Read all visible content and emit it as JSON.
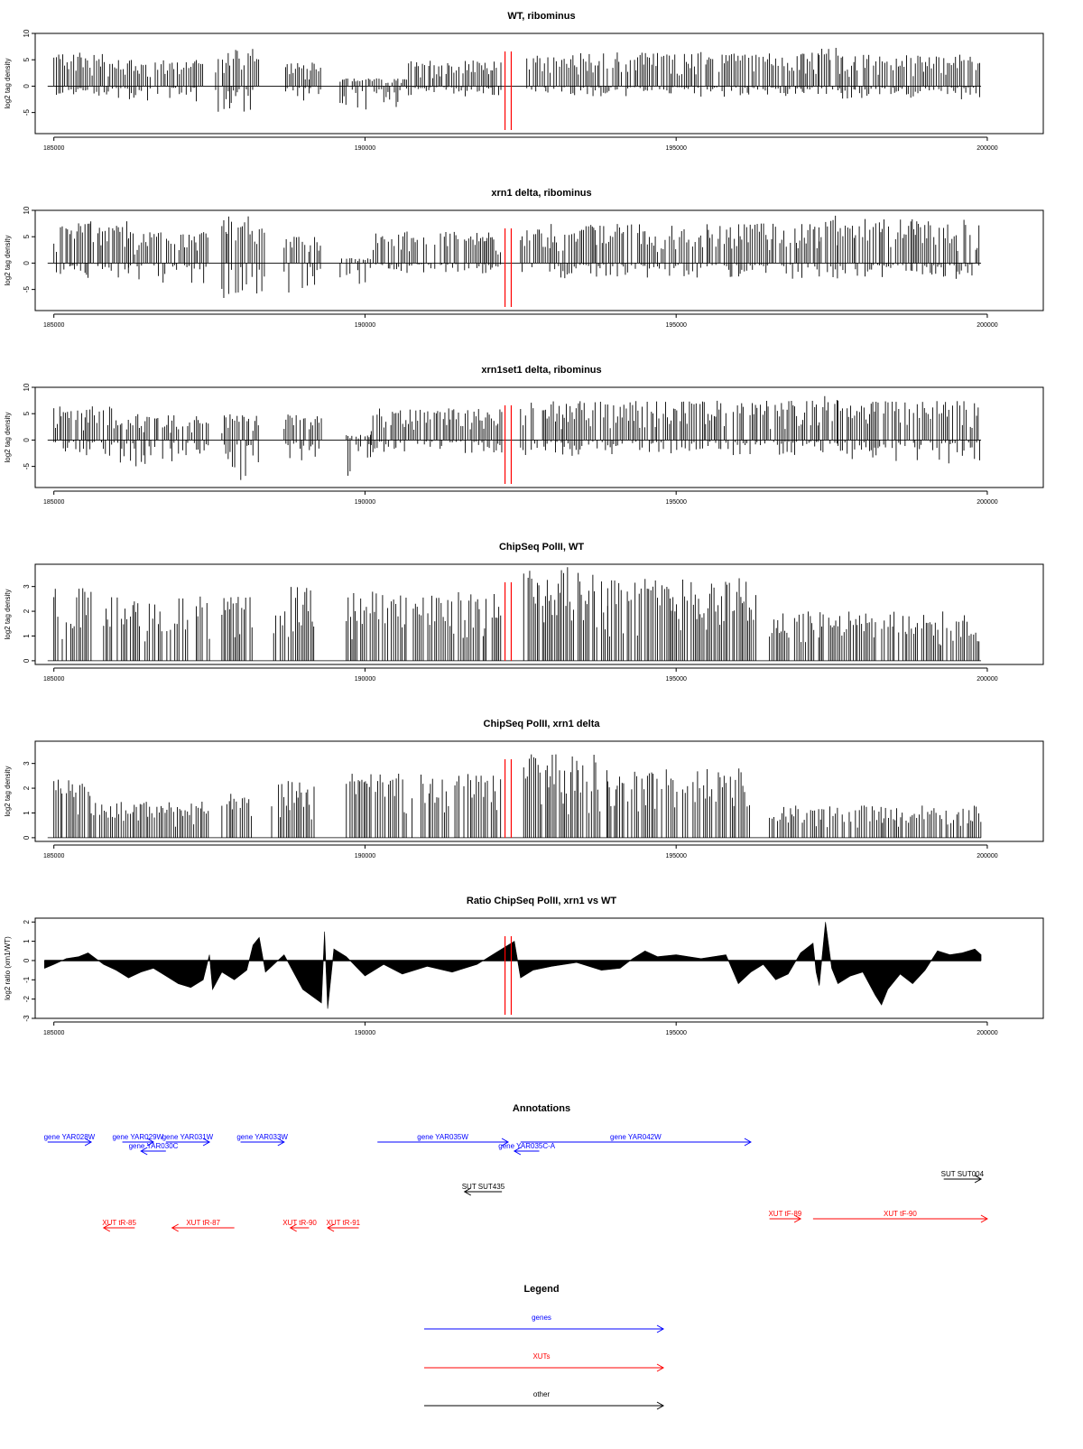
{
  "chart_data": [
    {
      "type": "bar",
      "title": "WT, ribominus",
      "xlabel": "",
      "ylabel": "log2 tag density",
      "xlim": [
        184700,
        200900
      ],
      "ylim": [
        -9,
        10
      ],
      "yticks": [
        "-5",
        "0",
        "5",
        "10"
      ],
      "yticks_values": [
        -5,
        0,
        5,
        10
      ],
      "xticks": [
        "185000",
        "190000",
        "195000",
        "200000"
      ],
      "xticks_values": [
        185000,
        190000,
        195000,
        200000
      ],
      "red_lines_x": [
        192250,
        192350
      ],
      "profile": [
        {
          "x": [
            185000,
            185900
          ],
          "pos_max": 6.5,
          "neg_min": -2
        },
        {
          "x": [
            185900,
            187400
          ],
          "pos_max": 5,
          "neg_min": -3
        },
        {
          "x": [
            187600,
            188300
          ],
          "pos_max": 7.5,
          "neg_min": -5.5
        },
        {
          "x": [
            188700,
            189300
          ],
          "pos_max": 4.5,
          "neg_min": -3
        },
        {
          "x": [
            189600,
            190700
          ],
          "pos_max": 1.5,
          "neg_min": -4.5
        },
        {
          "x": [
            190700,
            192200
          ],
          "pos_max": 5,
          "neg_min": -2
        },
        {
          "x": [
            192600,
            197300
          ],
          "pos_max": 6.5,
          "neg_min": -2
        },
        {
          "x": [
            197300,
            197600
          ],
          "pos_max": 8.5,
          "neg_min": -2
        },
        {
          "x": [
            197600,
            199900
          ],
          "pos_max": 6,
          "neg_min": -2.5
        }
      ]
    },
    {
      "type": "bar",
      "title": "xrn1 delta, ribominus",
      "xlabel": "",
      "ylabel": "log2 tag density",
      "xlim": [
        184700,
        200900
      ],
      "ylim": [
        -9,
        10
      ],
      "yticks": [
        "-5",
        "0",
        "5",
        "10"
      ],
      "yticks_values": [
        -5,
        0,
        5,
        10
      ],
      "xticks": [
        "185000",
        "190000",
        "195000",
        "200000"
      ],
      "xticks_values": [
        185000,
        190000,
        195000,
        200000
      ],
      "red_lines_x": [
        192250,
        192350
      ],
      "profile": [
        {
          "x": [
            185000,
            186200
          ],
          "pos_max": 8,
          "neg_min": -3
        },
        {
          "x": [
            186200,
            187500
          ],
          "pos_max": 6,
          "neg_min": -4
        },
        {
          "x": [
            187700,
            188400
          ],
          "pos_max": 9,
          "neg_min": -7
        },
        {
          "x": [
            188700,
            189300
          ],
          "pos_max": 5,
          "neg_min": -6
        },
        {
          "x": [
            189600,
            190100
          ],
          "pos_max": 1,
          "neg_min": -5.5
        },
        {
          "x": [
            190100,
            192200
          ],
          "pos_max": 6,
          "neg_min": -2
        },
        {
          "x": [
            192500,
            197300
          ],
          "pos_max": 7.5,
          "neg_min": -3
        },
        {
          "x": [
            197300,
            197600
          ],
          "pos_max": 9,
          "neg_min": -3
        },
        {
          "x": [
            197600,
            199900
          ],
          "pos_max": 8.5,
          "neg_min": -3
        }
      ]
    },
    {
      "type": "bar",
      "title": "xrn1set1 delta, ribominus",
      "xlabel": "",
      "ylabel": "log2 tag density",
      "xlim": [
        184700,
        200900
      ],
      "ylim": [
        -9,
        10
      ],
      "yticks": [
        "-5",
        "0",
        "5",
        "10"
      ],
      "yticks_values": [
        -5,
        0,
        5,
        10
      ],
      "xticks": [
        "185000",
        "190000",
        "195000",
        "200000"
      ],
      "xticks_values": [
        185000,
        190000,
        195000,
        200000
      ],
      "red_lines_x": [
        192250,
        192350
      ],
      "profile": [
        {
          "x": [
            185000,
            186000
          ],
          "pos_max": 6.5,
          "neg_min": -3
        },
        {
          "x": [
            186000,
            187500
          ],
          "pos_max": 5,
          "neg_min": -5
        },
        {
          "x": [
            187700,
            188300
          ],
          "pos_max": 5,
          "neg_min": -8.5
        },
        {
          "x": [
            188700,
            189300
          ],
          "pos_max": 5,
          "neg_min": -4
        },
        {
          "x": [
            189700,
            190100
          ],
          "pos_max": 1,
          "neg_min": -7
        },
        {
          "x": [
            190100,
            192200
          ],
          "pos_max": 6,
          "neg_min": -2.5
        },
        {
          "x": [
            192500,
            197300
          ],
          "pos_max": 7.5,
          "neg_min": -3
        },
        {
          "x": [
            197300,
            197600
          ],
          "pos_max": 8.5,
          "neg_min": -3
        },
        {
          "x": [
            197600,
            199900
          ],
          "pos_max": 7.5,
          "neg_min": -4.5
        }
      ]
    },
    {
      "type": "bar",
      "title": "ChipSeq PolII, WT",
      "xlabel": "",
      "ylabel": "log2 tag density",
      "xlim": [
        184700,
        200900
      ],
      "ylim": [
        -0.15,
        3.9
      ],
      "yticks": [
        "0",
        "1",
        "2",
        "3"
      ],
      "yticks_values": [
        0,
        1,
        2,
        3
      ],
      "xticks": [
        "185000",
        "190000",
        "195000",
        "200000"
      ],
      "xticks_values": [
        185000,
        190000,
        195000,
        200000
      ],
      "red_lines_x": [
        192250,
        192350
      ],
      "profile": [
        {
          "x": [
            185000,
            185600
          ],
          "pos_max": 3,
          "neg_min": 0
        },
        {
          "x": [
            185800,
            187500
          ],
          "pos_max": 2.6,
          "neg_min": 0
        },
        {
          "x": [
            187700,
            188200
          ],
          "pos_max": 2.6,
          "neg_min": 0
        },
        {
          "x": [
            188500,
            189200
          ],
          "pos_max": 3,
          "neg_min": 0
        },
        {
          "x": [
            189700,
            192200
          ],
          "pos_max": 2.8,
          "neg_min": 0
        },
        {
          "x": [
            192550,
            193900
          ],
          "pos_max": 3.8,
          "neg_min": 0
        },
        {
          "x": [
            193900,
            196300
          ],
          "pos_max": 3.4,
          "neg_min": 0
        },
        {
          "x": [
            196500,
            199900
          ],
          "pos_max": 2,
          "neg_min": 0
        }
      ]
    },
    {
      "type": "bar",
      "title": "ChipSeq PolII, xrn1 delta",
      "xlabel": "",
      "ylabel": "log2 tag density",
      "xlim": [
        184700,
        200900
      ],
      "ylim": [
        -0.15,
        3.9
      ],
      "yticks": [
        "0",
        "1",
        "2",
        "3"
      ],
      "yticks_values": [
        0,
        1,
        2,
        3
      ],
      "xticks": [
        "185000",
        "190000",
        "195000",
        "200000"
      ],
      "xticks_values": [
        185000,
        190000,
        195000,
        200000
      ],
      "red_lines_x": [
        192250,
        192350
      ],
      "profile": [
        {
          "x": [
            185000,
            185600
          ],
          "pos_max": 2.4,
          "neg_min": 0
        },
        {
          "x": [
            185600,
            187500
          ],
          "pos_max": 1.5,
          "neg_min": 0
        },
        {
          "x": [
            187700,
            188200
          ],
          "pos_max": 1.8,
          "neg_min": 0
        },
        {
          "x": [
            188500,
            189200
          ],
          "pos_max": 2.3,
          "neg_min": 0
        },
        {
          "x": [
            189700,
            192200
          ],
          "pos_max": 2.6,
          "neg_min": 0
        },
        {
          "x": [
            192550,
            193900
          ],
          "pos_max": 3.4,
          "neg_min": 0
        },
        {
          "x": [
            193900,
            196200
          ],
          "pos_max": 2.8,
          "neg_min": 0
        },
        {
          "x": [
            196500,
            199900
          ],
          "pos_max": 1.3,
          "neg_min": 0
        }
      ]
    },
    {
      "type": "area",
      "title": "Ratio ChipSeq PolII, xrn1 vs WT",
      "xlabel": "",
      "ylabel": "log2 ratio (xrn1/WT)",
      "xlim": [
        184700,
        200900
      ],
      "ylim": [
        -3,
        2.2
      ],
      "yticks": [
        "-3",
        "-2",
        "-1",
        "0",
        "1",
        "2"
      ],
      "yticks_values": [
        -3,
        -2,
        -1,
        0,
        1,
        2
      ],
      "xticks": [
        "185000",
        "190000",
        "195000",
        "200000"
      ],
      "xticks_values": [
        185000,
        190000,
        195000,
        200000
      ],
      "red_lines_x": [
        192250,
        192350
      ],
      "x": [
        184850,
        185000,
        185200,
        185400,
        185550,
        185800,
        186000,
        186200,
        186400,
        186600,
        186800,
        187000,
        187200,
        187400,
        187500,
        187550,
        187700,
        187900,
        188100,
        188200,
        188300,
        188400,
        188500,
        188700,
        189000,
        189300,
        189350,
        189400,
        189500,
        189700,
        190000,
        190300,
        190600,
        191000,
        191400,
        191800,
        192100,
        192300,
        192400,
        192500,
        192700,
        193000,
        193400,
        193800,
        194100,
        194300,
        194500,
        194700,
        195000,
        195400,
        195800,
        196000,
        196200,
        196400,
        196600,
        196800,
        197000,
        197200,
        197250,
        197300,
        197400,
        197500,
        197600,
        197800,
        198000,
        198200,
        198300,
        198400,
        198600,
        198800,
        199000,
        199200,
        199400,
        199600,
        199800,
        199900
      ],
      "y": [
        -0.4,
        -0.2,
        0.1,
        0.2,
        0.4,
        -0.2,
        -0.5,
        -0.9,
        -0.6,
        -0.4,
        -0.8,
        -1.2,
        -1.4,
        -1.0,
        0.3,
        -1.5,
        -0.6,
        -1.0,
        -0.5,
        0.8,
        1.2,
        -0.6,
        -0.3,
        0.3,
        -1.5,
        -2.2,
        1.5,
        -2.5,
        0.6,
        0.2,
        -0.8,
        -0.2,
        -0.7,
        -0.3,
        -0.6,
        -0.2,
        0.4,
        0.8,
        1.0,
        -0.9,
        -0.5,
        -0.3,
        -0.1,
        -0.5,
        -0.4,
        0.1,
        0.5,
        0.2,
        0.3,
        0.1,
        0.3,
        -1.2,
        -0.6,
        -0.2,
        -1.0,
        -0.7,
        0.4,
        0.9,
        -0.6,
        -1.3,
        2.0,
        -0.4,
        -1.2,
        -0.8,
        -0.6,
        -1.8,
        -2.3,
        -1.5,
        -0.7,
        -1.2,
        -0.5,
        0.5,
        0.3,
        0.4,
        0.6,
        0.3
      ]
    }
  ],
  "annotations": {
    "title": "Annotations",
    "rows": [
      {
        "y_row": 1,
        "color": "#0000ff",
        "items": [
          {
            "label": "gene YAR028W",
            "start": 184900,
            "end": 185600,
            "dir": "right"
          },
          {
            "label": "gene YAR029W",
            "start": 186100,
            "end": 186600,
            "dir": "right"
          },
          {
            "label": "gene YAR031W",
            "start": 186800,
            "end": 187500,
            "dir": "right"
          },
          {
            "label": "gene YAR033W",
            "start": 188000,
            "end": 188700,
            "dir": "right"
          },
          {
            "label": "gene YAR035W",
            "start": 190200,
            "end": 192300,
            "dir": "right"
          },
          {
            "label": "gene YAR042W",
            "start": 192500,
            "end": 196200,
            "dir": "right"
          }
        ]
      },
      {
        "y_row": 2,
        "color": "#0000ff",
        "items": [
          {
            "label": "gene YAR030C",
            "start": 186400,
            "end": 186800,
            "dir": "left"
          },
          {
            "label": "gene YAR035C-A",
            "start": 192400,
            "end": 192800,
            "dir": "left"
          }
        ]
      },
      {
        "y_row": 3,
        "color": "#000000",
        "items": [
          {
            "label": "SUT SUT004",
            "start": 199300,
            "end": 199900,
            "dir": "right"
          }
        ]
      },
      {
        "y_row": 4,
        "color": "#000000",
        "items": [
          {
            "label": "SUT SUT435",
            "start": 191600,
            "end": 192200,
            "dir": "left"
          }
        ]
      },
      {
        "y_row": 5,
        "color": "#ff0000",
        "items": [
          {
            "label": "XUT tF-89",
            "start": 196500,
            "end": 197000,
            "dir": "right"
          },
          {
            "label": "XUT tF-90",
            "start": 197200,
            "end": 200000,
            "dir": "right"
          }
        ]
      },
      {
        "y_row": 6,
        "color": "#ff0000",
        "items": [
          {
            "label": "XUT tR-85",
            "start": 185800,
            "end": 186300,
            "dir": "left"
          },
          {
            "label": "XUT tR-87",
            "start": 186900,
            "end": 187900,
            "dir": "left"
          },
          {
            "label": "XUT tR-90",
            "start": 188800,
            "end": 189100,
            "dir": "left"
          },
          {
            "label": "XUT tR-91",
            "start": 189400,
            "end": 189900,
            "dir": "left"
          }
        ]
      }
    ]
  },
  "legend": {
    "title": "Legend",
    "items": [
      {
        "label": "genes",
        "color": "#0000ff"
      },
      {
        "label": "XUTs",
        "color": "#ff0000"
      },
      {
        "label": "other",
        "color": "#000000"
      }
    ]
  }
}
